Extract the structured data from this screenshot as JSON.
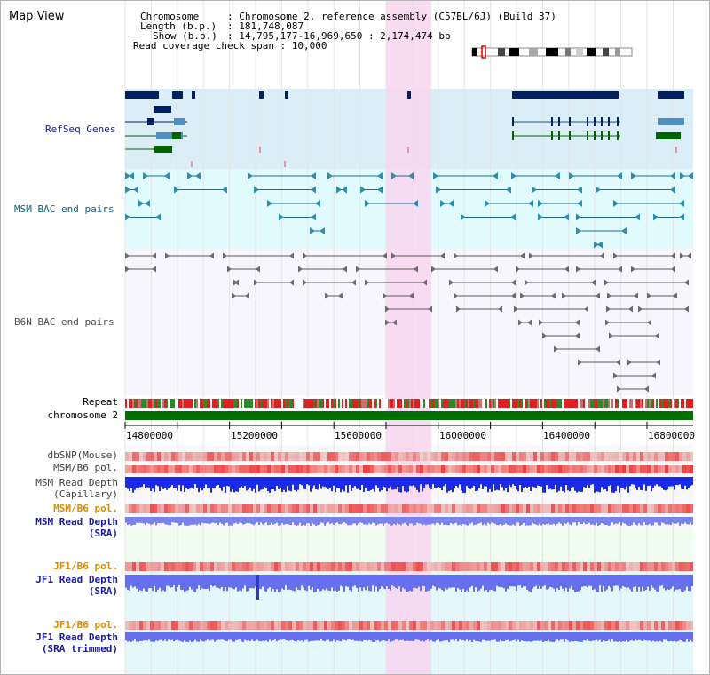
{
  "panel": {
    "title": "Map View"
  },
  "info": {
    "chromosome_label": "Chromosome",
    "chromosome_value": ": Chromosome 2, reference assembly (C57BL/6J) (Build 37)",
    "length_label": "Length (b.p.)",
    "length_value": ": 181,748,087",
    "show_label": "Show (b.p.)",
    "show_value": ": 14,795,177-16,969,650 : 2,174,474 bp",
    "coverage_line": "Read coverage check span : 10,000"
  },
  "tracks": {
    "refseq": "RefSeq Genes",
    "msm_bac": "MSM BAC end pairs",
    "b6n_bac": "B6N BAC end pairs",
    "repeat": "Repeat",
    "chromosome": "chromosome 2",
    "dbsnp": "dbSNP(Mouse)",
    "msm_pol": "MSM/B6 pol.",
    "msm_depth_cap_1": "MSM Read Depth",
    "msm_depth_cap_2": "(Capillary)",
    "msm_pol_2": "MSM/B6 pol.",
    "msm_depth_sra_1": "MSM Read Depth",
    "msm_depth_sra_2": "(SRA)",
    "jf1_pol": "JF1/B6 pol.",
    "jf1_depth_sra_1": "JF1 Read Depth",
    "jf1_depth_sra_2": "(SRA)",
    "jf1_pol_2": "JF1/B6 pol.",
    "jf1_depth_trim_1": "JF1 Read Depth",
    "jf1_depth_trim_2": "(SRA trimmed)"
  },
  "axis": {
    "ticks": [
      "14800000",
      "15200000",
      "15600000",
      "16000000",
      "16400000",
      "16800000"
    ]
  },
  "colors": {
    "refseq_bg": "#dbeef8",
    "msm_bg": "#e1fafd",
    "b6n_bg": "#f6f6fc",
    "lower_bg": "#f0fcf0",
    "highlight": "#f8d6f0",
    "gene_dark": "#002060",
    "gene_mid": "#4f8fc0",
    "gene_green": "#006400",
    "bac_teal": "#1a6b8a",
    "bac_grey": "#5a5a5a",
    "chromosome": "#007000",
    "label_blue": "#1a1aa0",
    "label_teal": "#10607a",
    "label_orange": "#e08a00",
    "depth_blue": "#1a2ae8",
    "depth_light": "#6670ee"
  }
}
